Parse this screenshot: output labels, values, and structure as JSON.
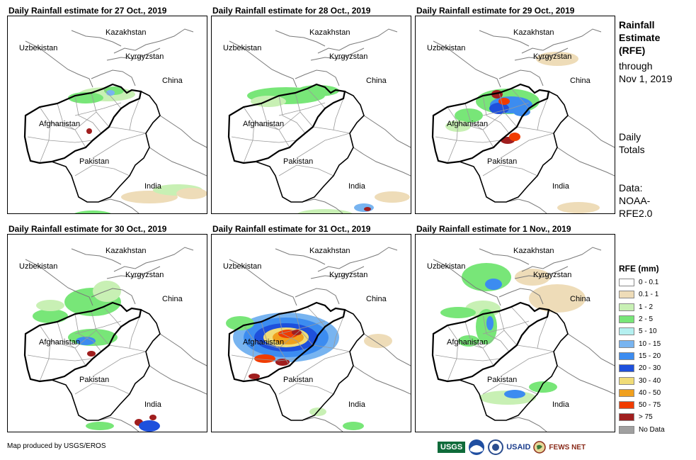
{
  "panels": [
    {
      "title": "Daily Rainfall estimate for 27 Oct., 2019"
    },
    {
      "title": "Daily Rainfall estimate for 28 Oct., 2019"
    },
    {
      "title": "Daily Rainfall estimate for 29 Oct., 2019"
    },
    {
      "title": "Daily Rainfall estimate for 30 Oct., 2019"
    },
    {
      "title": "Daily Rainfall estimate for 31 Oct., 2019"
    },
    {
      "title": "Daily Rainfall estimate for 1 Nov., 2019"
    }
  ],
  "map_labels": {
    "kazakhstan": "Kazakhstan",
    "uzbekistan": "Uzbekistan",
    "kyrgyzstan": "Kyrgyzstan",
    "china": "China",
    "afghanistan": "Afghanistan",
    "pakistan": "Pakistan",
    "india": "India"
  },
  "side": {
    "title_lines": [
      "Rainfall",
      "Estimate",
      "(RFE)"
    ],
    "through_lines": [
      "through",
      "Nov 1, 2019"
    ],
    "totals_lines": [
      "Daily",
      "Totals"
    ],
    "data_lines": [
      "Data:",
      "NOAA-",
      "RFE2.0"
    ]
  },
  "legend": {
    "title": "RFE (mm)",
    "items": [
      {
        "label": "0 - 0.1",
        "color": "#ffffff"
      },
      {
        "label": "0.1 - 1",
        "color": "#eedcb8"
      },
      {
        "label": "1 - 2",
        "color": "#c8f0b4"
      },
      {
        "label": "2 - 5",
        "color": "#78e678"
      },
      {
        "label": "5 - 10",
        "color": "#b4f0f0"
      },
      {
        "label": "10 - 15",
        "color": "#78b4f0"
      },
      {
        "label": "15 - 20",
        "color": "#3c8cf0"
      },
      {
        "label": "20 - 30",
        "color": "#1e50dc"
      },
      {
        "label": "30 - 40",
        "color": "#f0dc78"
      },
      {
        "label": "40 - 50",
        "color": "#f0a01e"
      },
      {
        "label": "50 - 75",
        "color": "#f03c00"
      },
      {
        "label": "> 75",
        "color": "#a01e1e"
      },
      {
        "label": "No Data",
        "color": "#a0a0a0"
      }
    ]
  },
  "footer": "Map produced by USGS/EROS",
  "logos": {
    "usgs": "USGS",
    "usaid": "USAID",
    "fewsnet": "FEWS NET"
  }
}
